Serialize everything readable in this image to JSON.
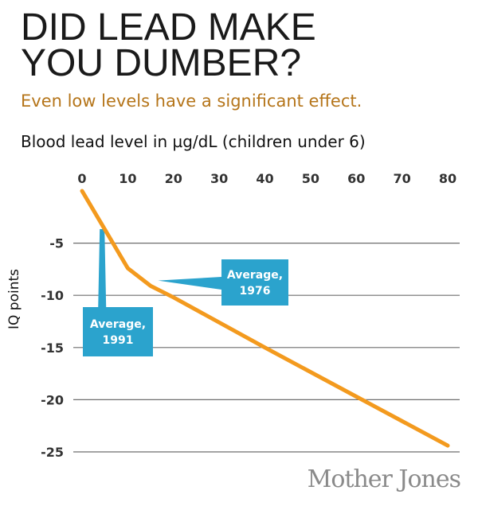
{
  "title_line1": "DID LEAD MAKE",
  "title_line2": "YOU DUMBER?",
  "subtitle": "Even low levels have a significant effect.",
  "credit": "Mother Jones",
  "colors": {
    "line": "#f39a1e",
    "callout": "#2ba3cd",
    "grid": "#6e6e6e",
    "subtitle": "#b5751a"
  },
  "chart_data": {
    "type": "line",
    "title": "DID LEAD MAKE YOU DUMBER?",
    "subtitle": "Even low levels have a significant effect.",
    "xlabel": "Blood lead level in µg/dL (children under 6)",
    "ylabel": "IQ points",
    "xlim": [
      0,
      80
    ],
    "ylim": [
      -25,
      0
    ],
    "x_ticks": [
      0,
      10,
      20,
      30,
      40,
      50,
      60,
      70,
      80
    ],
    "y_ticks": [
      -5,
      -10,
      -15,
      -20,
      -25
    ],
    "x_axis_position": "top",
    "grid": true,
    "series": [
      {
        "x": [
          0,
          10,
          15,
          20,
          40,
          60,
          80
        ],
        "y": [
          0,
          -7.4,
          -9.1,
          -10.2,
          -15.0,
          -19.7,
          -24.4
        ]
      }
    ],
    "annotations": [
      {
        "line1": "Average,",
        "line2": "1991",
        "x": 3,
        "y": -5
      },
      {
        "line1": "Average,",
        "line2": "1976",
        "x": 18,
        "y": -9.5
      }
    ]
  }
}
